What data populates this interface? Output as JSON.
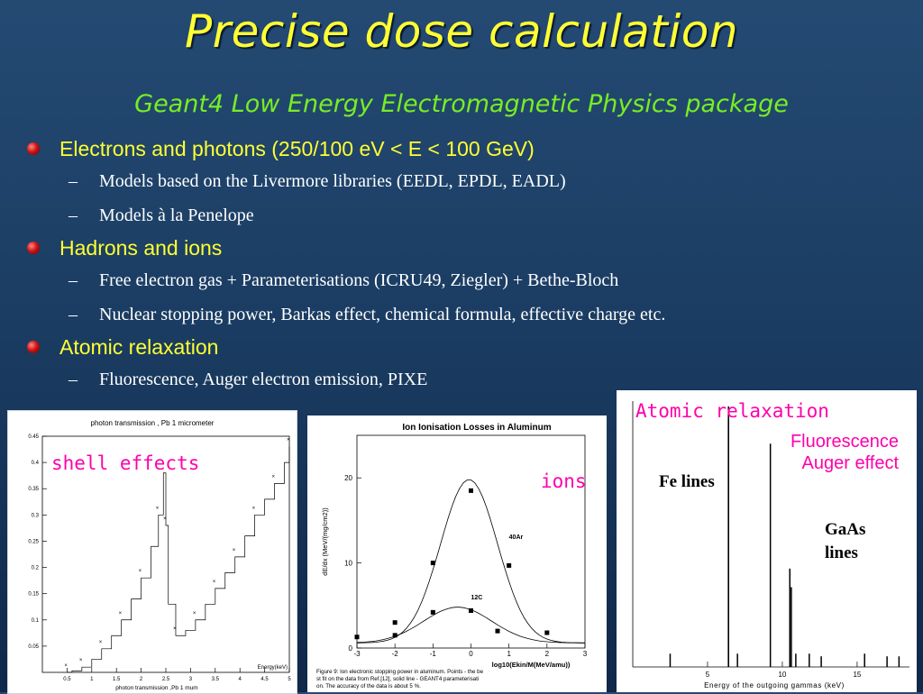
{
  "title": "Precise dose calculation",
  "subtitle": "Geant4 Low Energy Electromagnetic Physics package",
  "bullets": [
    {
      "text": "Electrons and photons (250/100 eV < E < 100 GeV)",
      "sub": [
        "Models based on the Livermore libraries (EEDL, EPDL, EADL)",
        "Models à la Penelope"
      ]
    },
    {
      "text": "Hadrons and ions",
      "sub": [
        "Free electron gas + Parameterisations (ICRU49, Ziegler) + Bethe-Bloch",
        "Nuclear stopping power, Barkas effect, chemical formula, effective charge etc."
      ]
    },
    {
      "text": "Atomic relaxation",
      "sub": [
        "Fluorescence, Auger electron emission, PIXE"
      ]
    }
  ],
  "labels": {
    "shell": "shell effects",
    "ions": "ions",
    "atomic": "Atomic relaxation",
    "fluorescence": "Fluorescence",
    "auger": "Auger effect",
    "fe_lines": "Fe lines",
    "gaas_1": "GaAs",
    "gaas_2": "lines"
  },
  "colors": {
    "title": "#ffff33",
    "subtitle": "#77ee22",
    "label": "#ff00aa",
    "bullet": "#d21414"
  },
  "chart_data": [
    {
      "type": "line",
      "title": "photon transmission , Pb 1 micrometer",
      "xlabel": "photon transmission ,Pb 1 mum",
      "ylabel": "",
      "x_unit_label": "Energy(keV)",
      "xlim": [
        0,
        5
      ],
      "ylim": [
        0,
        0.45
      ],
      "xticks": [
        "0.5",
        "1",
        "1.5",
        "2",
        "2.5",
        "3",
        "3.5",
        "4",
        "4.5",
        "5"
      ],
      "yticks": [
        "0.05",
        "0.1",
        "0.15",
        "0.2",
        "0.25",
        "0.3",
        "0.35",
        "0.4",
        "0.45"
      ],
      "x": [
        0.5,
        0.6,
        0.8,
        1.0,
        1.2,
        1.4,
        1.6,
        1.8,
        2.0,
        2.2,
        2.35,
        2.45,
        2.5,
        2.55,
        2.7,
        2.9,
        3.1,
        3.3,
        3.5,
        3.7,
        3.9,
        4.1,
        4.3,
        4.5,
        4.7,
        4.9,
        5.0
      ],
      "y": [
        0.0,
        0.003,
        0.01,
        0.025,
        0.045,
        0.07,
        0.1,
        0.14,
        0.18,
        0.24,
        0.3,
        0.38,
        0.28,
        0.13,
        0.07,
        0.08,
        0.1,
        0.13,
        0.16,
        0.19,
        0.22,
        0.26,
        0.3,
        0.33,
        0.36,
        0.4,
        0.43
      ]
    },
    {
      "type": "line",
      "title": "Ion Ionisation Losses in Aluminum",
      "xlabel": "log10(Ekin/M(MeV/amu))",
      "ylabel": "dE/dx (MeV/(mg/cm2))",
      "xlim": [
        -3,
        3
      ],
      "ylim": [
        0,
        25
      ],
      "xticks": [
        "-3",
        "-2",
        "-1",
        "0",
        "1",
        "2",
        "3"
      ],
      "yticks": [
        "0",
        "10",
        "20"
      ],
      "series": [
        {
          "name": "40Ar",
          "x": [
            -2,
            -1,
            0,
            1
          ],
          "y": [
            3.0,
            10.0,
            18.5,
            9.7
          ]
        },
        {
          "name": "12C",
          "x": [
            -3,
            -2,
            -1,
            0,
            0.7,
            2
          ],
          "y": [
            1.3,
            1.5,
            4.2,
            4.4,
            2.0,
            1.8
          ]
        }
      ],
      "caption": "Figure 9: Ion electronic stopping power in aluminum. Points - the best fit on the data from Ref.[12], solid line - GEANT4 parameterisation. The accuracy of the data is about 5 %."
    },
    {
      "type": "bar",
      "title": "",
      "xlabel": "Energy of the outgoing gammas (keV)",
      "xlim": [
        0,
        18.5
      ],
      "xticks": [
        "5",
        "10",
        "15"
      ],
      "lines_keV": [
        2.5,
        6.4,
        6.4,
        7.0,
        9.2,
        10.5,
        10.6,
        10.9,
        11.8,
        12.6,
        15.5,
        17.0,
        17.8
      ],
      "heights": [
        0.05,
        0.98,
        0.93,
        0.05,
        0.84,
        0.37,
        0.3,
        0.05,
        0.05,
        0.04,
        0.05,
        0.04,
        0.04
      ]
    }
  ]
}
